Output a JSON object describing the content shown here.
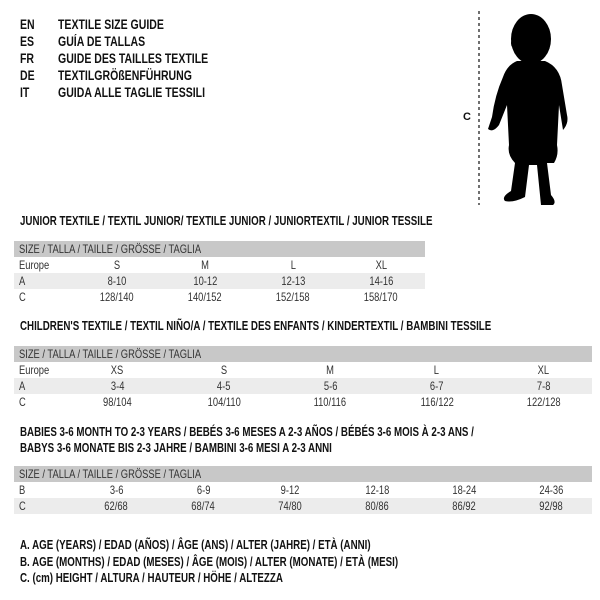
{
  "header": {
    "languages": [
      {
        "code": "EN",
        "title": "TEXTILE SIZE GUIDE"
      },
      {
        "code": "ES",
        "title": "GUÍA DE TALLAS"
      },
      {
        "code": "FR",
        "title": "GUIDE DES TAILLES TEXTILE"
      },
      {
        "code": "DE",
        "title": "TEXTILGRÖßENFÜHRUNG"
      },
      {
        "code": "IT",
        "title": "GUIDA ALLE TAGLIE TESSILI"
      }
    ]
  },
  "figure": {
    "measure_label": "C",
    "icon": "child-silhouette-icon"
  },
  "tables": [
    {
      "title": "JUNIOR TEXTILE / TEXTIL JUNIOR/ TEXTILE JUNIOR / JUNIORTEXTIL / JUNIOR TESSILE",
      "header": "SIZE / TALLA / TAILLE / GRÖSSE / TAGLIA",
      "rows": [
        {
          "label": "Europe",
          "values": [
            "S",
            "M",
            "L",
            "XL"
          ]
        },
        {
          "label": "A",
          "values": [
            "8-10",
            "10-12",
            "12-13",
            "14-16"
          ]
        },
        {
          "label": "C",
          "values": [
            "128/140",
            "140/152",
            "152/158",
            "158/170"
          ]
        }
      ]
    },
    {
      "title": "CHILDREN'S TEXTILE / TEXTIL NIÑO/A / TEXTILE DES ENFANTS / KINDERTEXTIL / BAMBINI TESSILE",
      "header": "SIZE / TALLA / TAILLE / GRÖSSE / TAGLIA",
      "rows": [
        {
          "label": "Europe",
          "values": [
            "XS",
            "S",
            "M",
            "L",
            "XL"
          ]
        },
        {
          "label": "A",
          "values": [
            "3-4",
            "4-5",
            "5-6",
            "6-7",
            "7-8"
          ]
        },
        {
          "label": "C",
          "values": [
            "98/104",
            "104/110",
            "110/116",
            "116/122",
            "122/128"
          ]
        }
      ]
    },
    {
      "title": "BABIES 3-6 MONTH TO 2-3 YEARS / BEBÉS 3-6 MESES A 2-3 AÑOS / BÉBÉS 3-6 MOIS À 2-3 ANS /",
      "title_line2": "BABYS 3-6 MONATE BIS 2-3 JAHRE / BAMBINI 3-6 MESI A 2-3 ANNI",
      "header": "SIZE / TALLA / TAILLE / GRÖSSE / TAGLIA",
      "rows": [
        {
          "label": "B",
          "values": [
            "3-6",
            "6-9",
            "9-12",
            "12-18",
            "18-24",
            "24-36"
          ]
        },
        {
          "label": "C",
          "values": [
            "62/68",
            "68/74",
            "74/80",
            "80/86",
            "86/92",
            "92/98"
          ]
        }
      ]
    }
  ],
  "legend": [
    "A. AGE (YEARS) / EDAD (AÑOS) / ÂGE (ANS) / ALTER (JAHRE) / ETÀ (ANNI)",
    "B. AGE (MONTHS) / EDAD (MESES) / ÂGE (MOIS) / ALTER (MONATE) / ETÀ (MESI)",
    "C. (cm) HEIGHT / ALTURA / HAUTEUR / HÖHE / ALTEZZA"
  ],
  "colors": {
    "header_bar": "#c8c8c8",
    "row_shade": "#ececec",
    "text": "#111111"
  }
}
